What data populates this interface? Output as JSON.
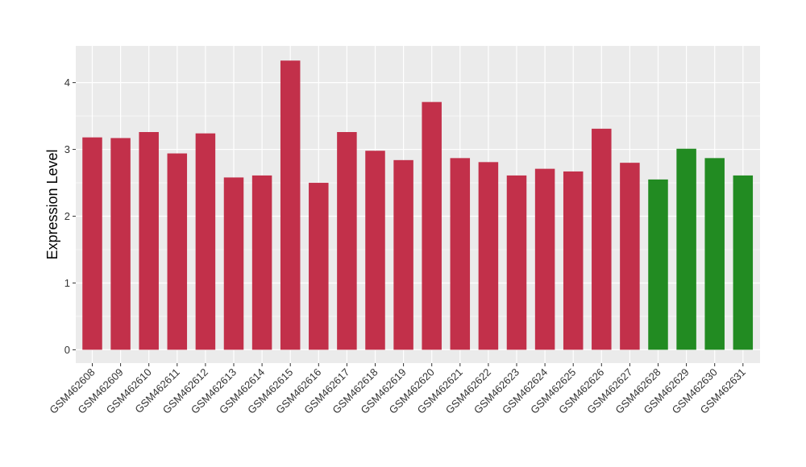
{
  "chart_data": {
    "type": "bar",
    "ylabel": "Expression Level",
    "ylim": [
      -0.2,
      4.55
    ],
    "yticks": [
      0,
      1,
      2,
      3,
      4
    ],
    "grid": true,
    "categories": [
      "GSM462608",
      "GSM462609",
      "GSM462610",
      "GSM462611",
      "GSM462612",
      "GSM462613",
      "GSM462614",
      "GSM462615",
      "GSM462616",
      "GSM462617",
      "GSM462618",
      "GSM462619",
      "GSM462620",
      "GSM462621",
      "GSM462622",
      "GSM462623",
      "GSM462624",
      "GSM462625",
      "GSM462626",
      "GSM462627",
      "GSM462628",
      "GSM462629",
      "GSM462630",
      "GSM462631"
    ],
    "values": [
      3.18,
      3.17,
      3.26,
      2.94,
      3.24,
      2.58,
      2.61,
      4.33,
      2.5,
      3.26,
      2.98,
      2.84,
      3.71,
      2.87,
      2.81,
      2.61,
      2.71,
      2.67,
      3.31,
      2.8,
      2.55,
      3.01,
      2.87,
      2.61
    ],
    "bar_colors": [
      "#C2304A",
      "#C2304A",
      "#C2304A",
      "#C2304A",
      "#C2304A",
      "#C2304A",
      "#C2304A",
      "#C2304A",
      "#C2304A",
      "#C2304A",
      "#C2304A",
      "#C2304A",
      "#C2304A",
      "#C2304A",
      "#C2304A",
      "#C2304A",
      "#C2304A",
      "#C2304A",
      "#C2304A",
      "#C2304A",
      "#228B22",
      "#228B22",
      "#228B22",
      "#228B22"
    ],
    "panel_color": "#EBEBEB",
    "grid_color": "#FFFFFF"
  }
}
